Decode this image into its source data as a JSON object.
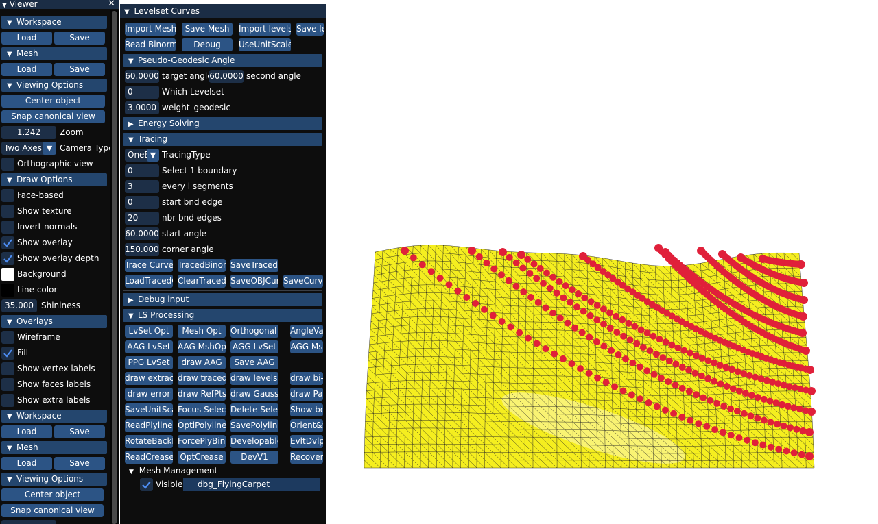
{
  "viewer": {
    "title": "Viewer",
    "close_glyph": "✕",
    "workspace1": {
      "header": "Workspace",
      "load": "Load",
      "save": "Save"
    },
    "mesh1": {
      "header": "Mesh",
      "load": "Load",
      "save": "Save"
    },
    "viewing1": {
      "header": "Viewing Options",
      "center": "Center object",
      "snap": "Snap canonical view",
      "zoom_value": "1.242",
      "zoom_label": "Zoom",
      "camera_value": "Two Axes",
      "camera_label": "Camera Type",
      "ortho_label": "Orthographic view"
    },
    "draw": {
      "header": "Draw Options",
      "face_based": "Face-based",
      "show_texture": "Show texture",
      "invert_normals": "Invert normals",
      "show_overlay": "Show overlay",
      "show_overlay_depth": "Show overlay depth",
      "background": "Background",
      "line_color": "Line color",
      "shininess_value": "35.000",
      "shininess_label": "Shininess"
    },
    "overlays": {
      "header": "Overlays",
      "wireframe": "Wireframe",
      "fill": "Fill",
      "vertex_labels": "Show vertex labels",
      "faces_labels": "Show faces labels",
      "extra_labels": "Show extra labels"
    },
    "workspace2": {
      "header": "Workspace",
      "load": "Load",
      "save": "Save"
    },
    "mesh2": {
      "header": "Mesh",
      "load": "Load",
      "save": "Save"
    },
    "viewing2": {
      "header": "Viewing Options",
      "center": "Center object",
      "snap": "Snap canonical view"
    },
    "colors": {
      "background_swatch": "#ffffff",
      "line_swatch": "#000000"
    }
  },
  "levelset": {
    "title": "Levelset Curves",
    "row1": [
      "Import Mesh",
      "Save Mesh",
      "Import levelse",
      "Save le"
    ],
    "row2": [
      "Read Binorma",
      "Debug",
      "UseUnitScaleM"
    ],
    "pga": {
      "header": "Pseudo-Geodesic Angle",
      "target_value": "60.0000",
      "target_label": "target angle",
      "second_value": "60.0000",
      "second_label": "second angle",
      "which_value": "0",
      "which_label": "Which Levelset",
      "weight_value": "3.0000",
      "weight_label": "weight_geodesic"
    },
    "energy_header": "Energy Solving",
    "tracing": {
      "header": "Tracing",
      "type_value": "OneE",
      "type_label": "TracingType",
      "boundary_value": "0",
      "boundary_label": "Select 1 boundary",
      "every_value": "3",
      "every_label": "every i segments",
      "start_edge_value": "0",
      "start_edge_label": "start bnd edge",
      "nbr_value": "20",
      "nbr_label": "nbr bnd edges",
      "start_angle_value": "60.0000",
      "start_angle_label": "start angle",
      "corner_value": "150.0000",
      "corner_label": "corner angle",
      "btn_row1": [
        "Trace Curves",
        "TracedBinorr",
        "SaveTracedC"
      ],
      "btn_row2": [
        "LoadTracedC",
        "ClearTracedC",
        "SaveOBJCurv",
        "SaveCurve"
      ]
    },
    "debug_header": "Debug input",
    "ls": {
      "header": "LS Processing",
      "rows": [
        [
          "LvSet Opt",
          "Mesh Opt",
          "Orthogonal LS",
          "AngleVa"
        ],
        [
          "AAG LvSet",
          "AAG MshOpt",
          "AGG LvSet",
          "AGG Ms"
        ],
        [
          "PPG LvSet",
          "draw AAG",
          "Save AAG"
        ],
        [
          "draw extracte",
          "draw traced",
          "draw levelset",
          "draw bi-no"
        ],
        [
          "draw error",
          "draw RefPts",
          "draw Gauss",
          "draw Parar"
        ],
        [
          "SaveUnitScal",
          "Focus Selecte",
          "Delete Select",
          "Show bour"
        ],
        [
          "ReadPlylines",
          "OptiPolylines",
          "SavePolyline:",
          "Orient&Sav"
        ],
        [
          "RotateBackPl",
          "ForcePlyBinn",
          "DevelopableS",
          "EvltDvlp"
        ],
        [
          "ReadCreases",
          "OptCrease",
          "DevV1",
          "RecoverEn"
        ]
      ]
    },
    "mesh_mgmt": {
      "header": "Mesh Management",
      "visible_label": "Visible",
      "mesh_name": "dbg_FlyingCarpet"
    }
  },
  "viewport": {
    "mesh_color": "#f5ee1f",
    "curve_color": "#e0203a",
    "wire_color": "#222222",
    "grid_cols": 56,
    "grid_rows": 28,
    "curve_count": 11
  }
}
